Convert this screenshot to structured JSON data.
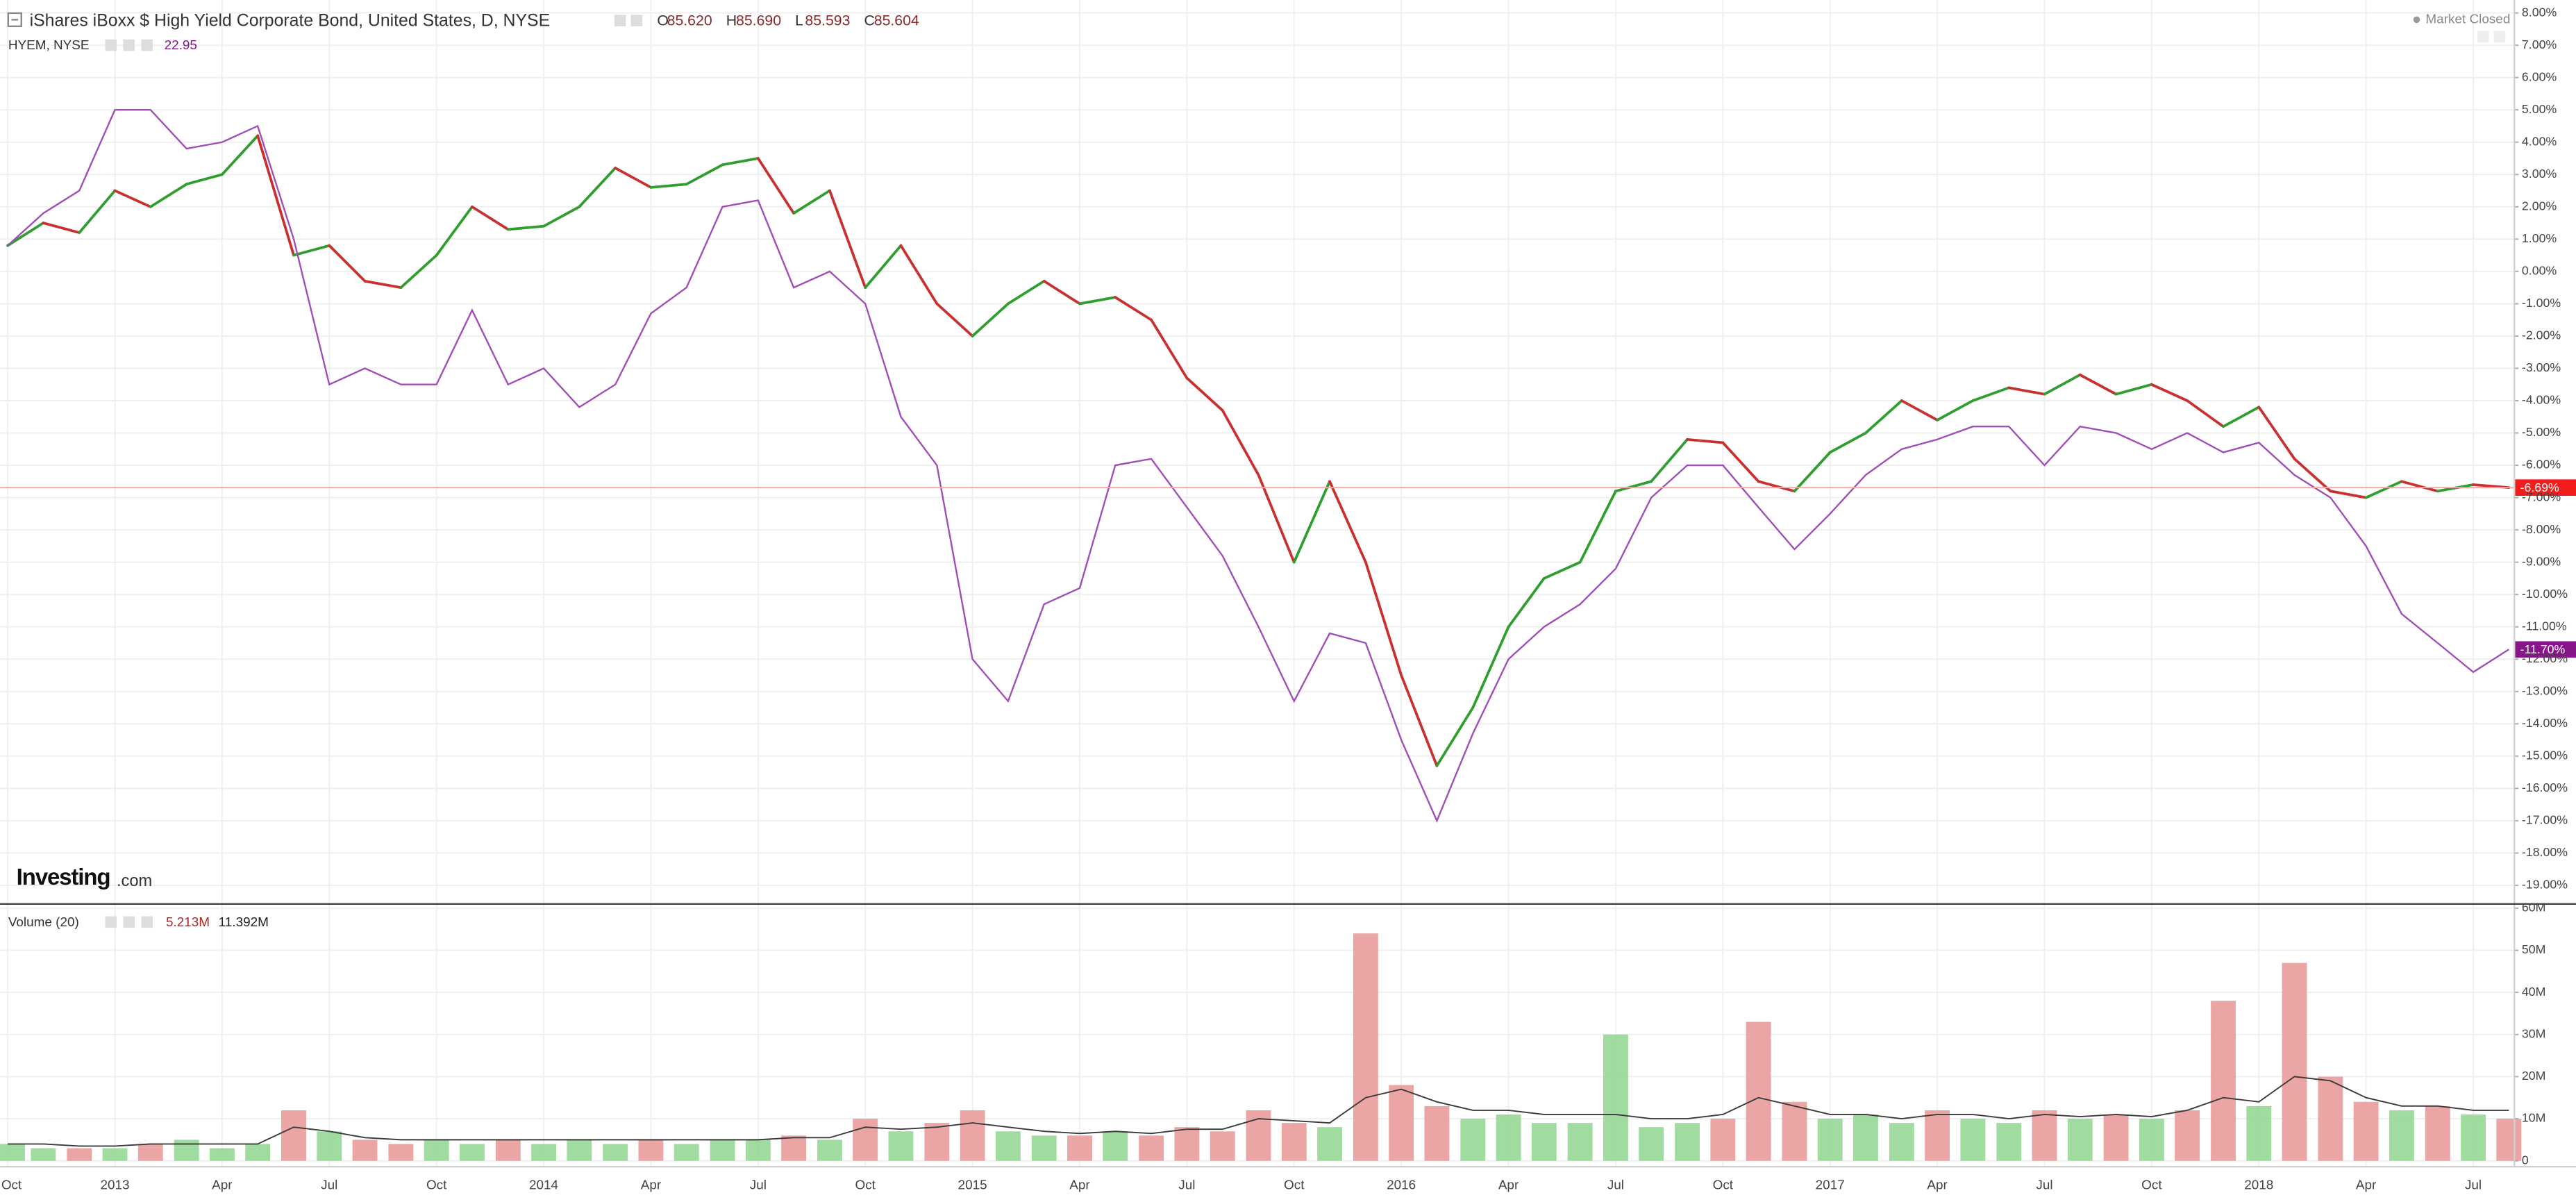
{
  "chart_data": [
    {
      "type": "line",
      "quote": [
        {
          "key": "O",
          "text": "85.620"
        },
        {
          "key": "H",
          "text": "85.690"
        },
        {
          "key": "L",
          "text": "85.593"
        },
        {
          "key": "C",
          "text": "85.604"
        }
      ],
      "status": "Market Closed",
      "watermark": [
        "Investing",
        ".com"
      ],
      "x": [
        2012.75,
        2012.833,
        2012.917,
        2013,
        2013.083,
        2013.167,
        2013.25,
        2013.333,
        2013.417,
        2013.5,
        2013.583,
        2013.667,
        2013.75,
        2013.833,
        2013.917,
        2014,
        2014.083,
        2014.167,
        2014.25,
        2014.333,
        2014.417,
        2014.5,
        2014.583,
        2014.667,
        2014.75,
        2014.833,
        2014.917,
        2015,
        2015.083,
        2015.167,
        2015.25,
        2015.333,
        2015.417,
        2015.5,
        2015.583,
        2015.667,
        2015.75,
        2015.833,
        2015.917,
        2016,
        2016.083,
        2016.167,
        2016.25,
        2016.333,
        2016.417,
        2016.5,
        2016.583,
        2016.667,
        2016.75,
        2016.833,
        2016.917,
        2017,
        2017.083,
        2017.167,
        2017.25,
        2017.333,
        2017.417,
        2017.5,
        2017.583,
        2017.667,
        2017.75,
        2017.833,
        2017.917,
        2018,
        2018.083,
        2018.167,
        2018.25,
        2018.333,
        2018.417,
        2018.5,
        2018.583
      ],
      "xlim": [
        2012.732,
        2018.594
      ],
      "xticks": [
        {
          "value": 2012.75,
          "label": "Oct"
        },
        2013,
        {
          "value": 2013.25,
          "label": "Apr"
        },
        {
          "value": 2013.5,
          "label": "Jul"
        },
        {
          "value": 2013.75,
          "label": "Oct"
        },
        2014,
        {
          "value": 2014.25,
          "label": "Apr"
        },
        {
          "value": 2014.5,
          "label": "Jul"
        },
        {
          "value": 2014.75,
          "label": "Oct"
        },
        2015,
        {
          "value": 2015.25,
          "label": "Apr"
        },
        {
          "value": 2015.5,
          "label": "Jul"
        },
        {
          "value": 2015.75,
          "label": "Oct"
        },
        2016,
        {
          "value": 2016.25,
          "label": "Apr"
        },
        {
          "value": 2016.5,
          "label": "Jul"
        },
        {
          "value": 2016.75,
          "label": "Oct"
        },
        2017,
        {
          "value": 2017.25,
          "label": "Apr"
        },
        {
          "value": 2017.5,
          "label": "Jul"
        },
        {
          "value": 2017.75,
          "label": "Oct"
        },
        2018,
        {
          "value": 2018.25,
          "label": "Apr"
        },
        {
          "value": 2018.5,
          "label": "Jul"
        }
      ],
      "ylim": [
        -19.5,
        8.4
      ],
      "yticks": [
        {
          "value": 8,
          "label": "8.00%"
        },
        {
          "value": 7,
          "label": "7.00%"
        },
        {
          "value": 6,
          "label": "6.00%"
        },
        {
          "value": 5,
          "label": "5.00%"
        },
        {
          "value": 4,
          "label": "4.00%"
        },
        {
          "value": 3,
          "label": "3.00%"
        },
        {
          "value": 2,
          "label": "2.00%"
        },
        {
          "value": 1,
          "label": "1.00%"
        },
        {
          "value": 0,
          "label": "0.00%"
        },
        {
          "value": -1,
          "label": "-1.00%"
        },
        {
          "value": -2,
          "label": "-2.00%"
        },
        {
          "value": -3,
          "label": "-3.00%"
        },
        {
          "value": -4,
          "label": "-4.00%"
        },
        {
          "value": -5,
          "label": "-5.00%"
        },
        {
          "value": -6,
          "label": "-6.00%"
        },
        {
          "value": -7,
          "label": "-7.00%"
        },
        {
          "value": -8,
          "label": "-8.00%"
        },
        {
          "value": -9,
          "label": "-9.00%"
        },
        {
          "value": -10,
          "label": "-10.00%"
        },
        {
          "value": -11,
          "label": "-11.00%"
        },
        {
          "value": -12,
          "label": "-12.00%"
        },
        {
          "value": -13,
          "label": "-13.00%"
        },
        {
          "value": -14,
          "label": "-14.00%"
        },
        {
          "value": -15,
          "label": "-15.00%"
        },
        {
          "value": -16,
          "label": "-16.00%"
        },
        {
          "value": -17,
          "label": "-17.00%"
        },
        {
          "value": -18,
          "label": "-18.00%"
        },
        {
          "value": -19,
          "label": "-19.00%"
        }
      ],
      "grid": true,
      "series": [
        {
          "name": "iShares iBoxx $ High Yield Corporate Bond, United States, D, NYSE",
          "style": "candle",
          "color_up": "#2f9e2f",
          "color_down": "#c93030",
          "price_line_color": "#f6a6a6",
          "badge_color": "#f21c1c",
          "values": [
            0.8,
            1.5,
            1.2,
            2.5,
            2.0,
            2.7,
            3.0,
            4.2,
            0.5,
            0.8,
            -0.3,
            -0.5,
            0.5,
            2.0,
            1.3,
            1.4,
            2.0,
            3.2,
            2.6,
            2.7,
            3.3,
            3.5,
            1.8,
            2.5,
            -0.5,
            0.8,
            -1.0,
            -2.0,
            -1.0,
            -0.3,
            -1.0,
            -0.8,
            -1.5,
            -3.3,
            -4.3,
            -6.3,
            -9.0,
            -6.5,
            -9.0,
            -12.5,
            -15.3,
            -13.5,
            -11.0,
            -9.5,
            -9.0,
            -6.8,
            -6.5,
            -5.2,
            -5.3,
            -6.5,
            -6.8,
            -5.6,
            -5.0,
            -4.0,
            -4.6,
            -4.0,
            -3.6,
            -3.8,
            -3.2,
            -3.8,
            -3.5,
            -4.0,
            -4.8,
            -4.2,
            -5.8,
            -6.8,
            -7.0,
            -6.5,
            -6.8,
            -6.6,
            -6.69
          ],
          "last_value": {
            "value": -6.69,
            "label": "-6.69%"
          }
        },
        {
          "name": "HYEM, NYSE",
          "style": "line",
          "last_text": "22.95",
          "color": "#a04db8",
          "badge_color": "#87168a",
          "values": [
            0.8,
            1.8,
            2.5,
            5.0,
            5.0,
            3.8,
            4.0,
            4.5,
            1.0,
            -3.5,
            -3.0,
            -3.5,
            -3.5,
            -1.2,
            -3.5,
            -3.0,
            -4.2,
            -3.5,
            -1.3,
            -0.5,
            2.0,
            2.2,
            -0.5,
            0.0,
            -1.0,
            -4.5,
            -6.0,
            -12.0,
            -13.3,
            -10.3,
            -9.8,
            -6.0,
            -5.8,
            -7.3,
            -8.8,
            -11.0,
            -13.3,
            -11.2,
            -11.5,
            -14.5,
            -17.0,
            -14.3,
            -12.0,
            -11.0,
            -10.3,
            -9.2,
            -7.0,
            -6.0,
            -6.0,
            -7.3,
            -8.6,
            -7.5,
            -6.3,
            -5.5,
            -5.2,
            -4.8,
            -4.8,
            -6.0,
            -4.8,
            -5.0,
            -5.5,
            -5.0,
            -5.6,
            -5.3,
            -6.3,
            -7.0,
            -8.5,
            -10.6,
            -11.5,
            -12.4,
            -11.7
          ],
          "last_value": {
            "value": -11.7,
            "label": "-11.70%"
          }
        }
      ]
    },
    {
      "type": "bar",
      "ylim": [
        -1.2,
        60.8
      ],
      "yticks": [
        0,
        {
          "value": 10,
          "label": "10M"
        },
        {
          "value": 20,
          "label": "20M"
        },
        {
          "value": 30,
          "label": "30M"
        },
        {
          "value": 40,
          "label": "40M"
        },
        {
          "value": 50,
          "label": "50M"
        },
        {
          "value": 60,
          "label": "60M"
        }
      ],
      "series": [
        {
          "name": "Volume (20)",
          "style": "bar",
          "readout": "5.213M",
          "color_up": "#8fd68f",
          "color_down": "#e89595",
          "values": [
            4,
            3,
            3,
            3,
            4,
            5,
            3,
            4,
            12,
            7,
            5,
            4,
            5,
            4,
            5,
            4,
            5,
            4,
            5,
            4,
            5,
            5,
            6,
            5,
            10,
            7,
            9,
            12,
            7,
            6,
            6,
            7,
            6,
            8,
            7,
            12,
            9,
            8,
            54,
            18,
            13,
            10,
            11,
            9,
            9,
            30,
            8,
            9,
            10,
            33,
            14,
            10,
            11,
            9,
            12,
            10,
            9,
            12,
            10,
            11,
            10,
            12,
            38,
            13,
            47,
            20,
            14,
            12,
            13,
            11,
            10
          ]
        },
        {
          "style": "line",
          "readout": "11.392M",
          "color": "#3a3a3a",
          "values": [
            4,
            4,
            3.5,
            3.5,
            4,
            4,
            4,
            4,
            8,
            7,
            5.5,
            5,
            5,
            5,
            5,
            5,
            5,
            5,
            5,
            5,
            5,
            5,
            5.5,
            5.5,
            8,
            7.5,
            8,
            9,
            8,
            7,
            6.5,
            7,
            6.5,
            7.5,
            7.5,
            10,
            9.5,
            9,
            15,
            17,
            14,
            12,
            12,
            11,
            11,
            11,
            10,
            10,
            11,
            15,
            13,
            11,
            11,
            10,
            11,
            11,
            10,
            11,
            10.5,
            11,
            10.5,
            12,
            15,
            14,
            20,
            19,
            15,
            13,
            13,
            12,
            12
          ]
        }
      ]
    }
  ]
}
